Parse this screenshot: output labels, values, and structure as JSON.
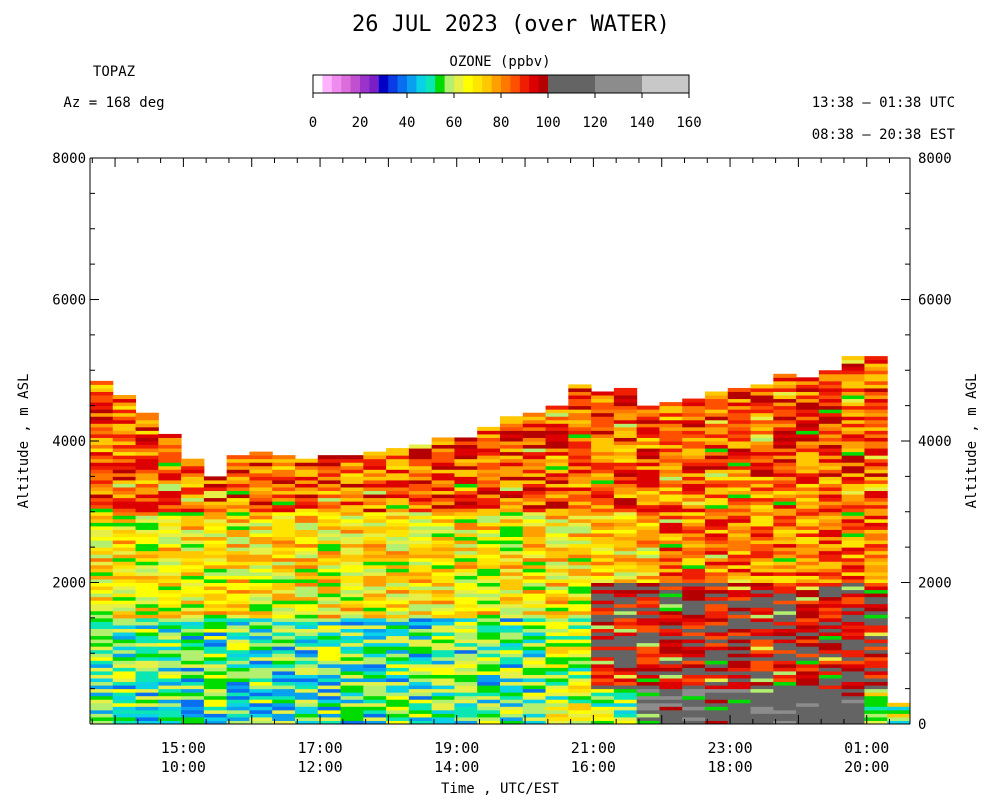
{
  "header": {
    "title": "26 JUL 2023 (over WATER)",
    "instrument": "TOPAZ",
    "azimuth": "Az = 168 deg",
    "utc_range": "13:38 – 01:38 UTC",
    "est_range": "08:38 – 20:38 EST"
  },
  "colorbar": {
    "label": "OZONE (ppbv)",
    "tick_labels": [
      "0",
      "20",
      "40",
      "60",
      "80",
      "100",
      "120",
      "140",
      "160"
    ],
    "colors": [
      "#ffffff",
      "#ffb3ff",
      "#f08cf0",
      "#dc6edc",
      "#c050d0",
      "#9a32cc",
      "#7a1ec8",
      "#0000c8",
      "#0a3ce6",
      "#0a6ef0",
      "#0aa0f0",
      "#0ad2e6",
      "#0ae6b4",
      "#00dc00",
      "#b4f070",
      "#e6f046",
      "#ffff00",
      "#ffe600",
      "#ffc800",
      "#ffa000",
      "#ff7800",
      "#ff5000",
      "#f01e00",
      "#dc0000",
      "#b40000",
      "#8c0020",
      "#646464",
      "#8c8c8c",
      "#c8c8c8"
    ]
  },
  "chart_data": {
    "type": "heatmap",
    "title": "26 JUL 2023 (over WATER)",
    "xlabel": "Time , UTC/EST",
    "ylabel_left": "Altitude , m ASL",
    "ylabel_right": "Altitude , m AGL",
    "colorbar_label": "OZONE (ppbv)",
    "colorbar_range": [
      0,
      160
    ],
    "xlim_utc": [
      "13:38",
      "01:38"
    ],
    "ylim": [
      0,
      8000
    ],
    "y_ticks_left": [
      "8000",
      "6000",
      "4000",
      "2000"
    ],
    "y_ticks_right": [
      "8000",
      "6000",
      "4000",
      "2000",
      "0"
    ],
    "x_tick_labels_utc": [
      "15:00",
      "17:00",
      "19:00",
      "21:00",
      "23:00",
      "01:00"
    ],
    "x_tick_labels_est": [
      "10:00",
      "12:00",
      "14:00",
      "16:00",
      "18:00",
      "20:00"
    ],
    "profile_times_utc": [
      "13:38",
      "13:58",
      "14:18",
      "14:38",
      "14:58",
      "15:18",
      "15:38",
      "15:58",
      "16:18",
      "16:38",
      "16:58",
      "17:18",
      "17:38",
      "17:58",
      "18:18",
      "18:38",
      "18:58",
      "19:18",
      "19:38",
      "19:58",
      "20:18",
      "20:38",
      "20:58",
      "21:18",
      "21:38",
      "21:58",
      "22:18",
      "22:38",
      "22:58",
      "23:18",
      "23:38",
      "23:58",
      "00:18",
      "00:38",
      "00:58",
      "01:18"
    ],
    "profile_top_altitude_m": [
      4850,
      4650,
      4400,
      4100,
      3750,
      3500,
      3800,
      3850,
      3800,
      3750,
      3800,
      3800,
      3850,
      3900,
      3950,
      4050,
      4050,
      4200,
      4350,
      4400,
      4500,
      4800,
      4700,
      4750,
      4500,
      4550,
      4600,
      4700,
      4750,
      4800,
      4950,
      4900,
      5000,
      5200,
      5200,
      300
    ],
    "layers": [
      {
        "alt_range_m": [
          0,
          300
        ],
        "ozone_ppbv": 30,
        "period_utc": [
          "13:38",
          "14:58"
        ]
      },
      {
        "alt_range_m": [
          0,
          1500
        ],
        "ozone_ppbv": 52,
        "period_utc": [
          "13:38",
          "19:58"
        ]
      },
      {
        "alt_range_m": [
          1500,
          3000
        ],
        "ozone_ppbv": 68,
        "period_utc": [
          "13:38",
          "20:38"
        ]
      },
      {
        "alt_range_m": [
          3000,
          4800
        ],
        "ozone_ppbv": 85,
        "period_utc": [
          "13:38",
          "21:58"
        ]
      },
      {
        "alt_range_m": [
          0,
          1000
        ],
        "ozone_ppbv": 112,
        "period_utc": [
          "21:38",
          "00:38"
        ]
      },
      {
        "alt_range_m": [
          500,
          2000
        ],
        "ozone_ppbv": 98,
        "period_utc": [
          "20:58",
          "01:18"
        ]
      },
      {
        "alt_range_m": [
          2000,
          3500
        ],
        "ozone_ppbv": 82,
        "period_utc": [
          "21:58",
          "01:18"
        ]
      }
    ]
  }
}
